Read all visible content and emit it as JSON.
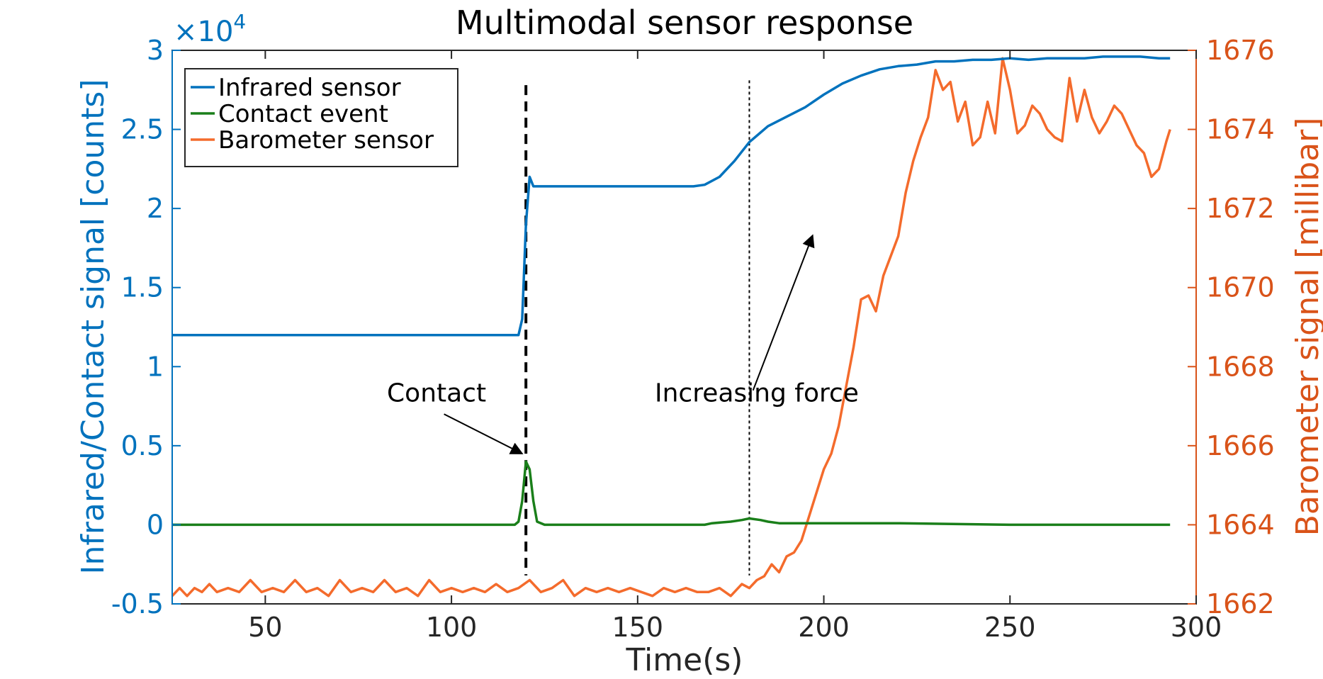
{
  "chart_data": {
    "type": "line",
    "title": "Multimodal sensor response",
    "xlabel": "Time(s)",
    "ylabel_left": "Infrared/Contact signal [counts]",
    "ylabel_right": "Barometer signal [millibar]",
    "left_multiplier": "×10",
    "left_multiplier_exp": "4",
    "xlim": [
      25,
      300
    ],
    "ylim_left": [
      -0.5,
      3
    ],
    "ylim_right": [
      1662,
      1676
    ],
    "x_ticks": [
      50,
      100,
      150,
      200,
      250,
      300
    ],
    "x_tick_labels": [
      "50",
      "100",
      "150",
      "200",
      "250",
      "300"
    ],
    "y_left_ticks": [
      -0.5,
      0,
      0.5,
      1,
      1.5,
      2,
      2.5,
      3
    ],
    "y_left_tick_labels": [
      "-0.5",
      "0",
      "0.5",
      "1",
      "1.5",
      "2",
      "2.5",
      "3"
    ],
    "y_right_ticks": [
      1662,
      1664,
      1666,
      1668,
      1670,
      1672,
      1674,
      1676
    ],
    "y_right_tick_labels": [
      "1662",
      "1664",
      "1666",
      "1668",
      "1670",
      "1672",
      "1674",
      "1676"
    ],
    "grid": false,
    "legend_position": "top-left",
    "colors": {
      "infrared": "#0072BD",
      "contact": "#1A7F1A",
      "barometer": "#F46B2C",
      "left_axis": "#0072BD",
      "right_axis": "#D95319"
    },
    "series": [
      {
        "name": "Infrared sensor",
        "axis": "left",
        "x": [
          25,
          60,
          100,
          118,
          119,
          120,
          121,
          122,
          130,
          150,
          165,
          168,
          172,
          176,
          180,
          182,
          185,
          190,
          195,
          200,
          205,
          210,
          215,
          220,
          225,
          230,
          235,
          240,
          245,
          250,
          255,
          260,
          265,
          270,
          275,
          280,
          285,
          290,
          293
        ],
        "y": [
          1.2,
          1.2,
          1.2,
          1.2,
          1.3,
          1.9,
          2.2,
          2.14,
          2.14,
          2.14,
          2.14,
          2.15,
          2.2,
          2.3,
          2.42,
          2.46,
          2.52,
          2.58,
          2.64,
          2.72,
          2.79,
          2.84,
          2.88,
          2.9,
          2.91,
          2.93,
          2.93,
          2.94,
          2.94,
          2.95,
          2.94,
          2.95,
          2.95,
          2.95,
          2.96,
          2.96,
          2.96,
          2.95,
          2.95
        ]
      },
      {
        "name": "Contact event",
        "axis": "left",
        "x": [
          25,
          60,
          100,
          117,
          118,
          119,
          120,
          121,
          122,
          123,
          125,
          150,
          168,
          170,
          175,
          178,
          180,
          183,
          185,
          188,
          190,
          200,
          220,
          250,
          293
        ],
        "y": [
          0,
          0,
          0,
          0,
          0.02,
          0.15,
          0.4,
          0.35,
          0.15,
          0.02,
          0,
          0,
          0,
          0.01,
          0.02,
          0.03,
          0.04,
          0.03,
          0.02,
          0.01,
          0.01,
          0.01,
          0.01,
          0,
          0
        ]
      },
      {
        "name": "Barometer sensor",
        "axis": "right",
        "x": [
          25,
          27,
          29,
          31,
          33,
          35,
          37,
          40,
          43,
          46,
          49,
          52,
          55,
          58,
          61,
          64,
          67,
          70,
          73,
          76,
          79,
          82,
          85,
          88,
          91,
          94,
          97,
          100,
          103,
          106,
          109,
          112,
          115,
          118,
          121,
          124,
          127,
          130,
          133,
          136,
          139,
          142,
          145,
          148,
          151,
          154,
          157,
          160,
          163,
          166,
          169,
          172,
          175,
          178,
          180,
          182,
          184,
          186,
          188,
          190,
          192,
          194,
          196,
          198,
          200,
          202,
          204,
          206,
          208,
          210,
          212,
          214,
          216,
          218,
          220,
          222,
          224,
          226,
          228,
          230,
          232,
          234,
          236,
          238,
          240,
          242,
          244,
          246,
          248,
          250,
          252,
          254,
          256,
          258,
          260,
          262,
          264,
          266,
          268,
          270,
          272,
          274,
          276,
          278,
          280,
          282,
          284,
          286,
          288,
          290,
          292,
          293
        ],
        "y": [
          1662.2,
          1662.4,
          1662.2,
          1662.4,
          1662.3,
          1662.5,
          1662.3,
          1662.4,
          1662.3,
          1662.6,
          1662.3,
          1662.4,
          1662.3,
          1662.6,
          1662.3,
          1662.4,
          1662.2,
          1662.6,
          1662.3,
          1662.4,
          1662.3,
          1662.6,
          1662.3,
          1662.4,
          1662.2,
          1662.6,
          1662.3,
          1662.4,
          1662.3,
          1662.4,
          1662.3,
          1662.5,
          1662.3,
          1662.4,
          1662.6,
          1662.3,
          1662.4,
          1662.6,
          1662.2,
          1662.4,
          1662.3,
          1662.4,
          1662.3,
          1662.4,
          1662.3,
          1662.2,
          1662.4,
          1662.3,
          1662.4,
          1662.3,
          1662.3,
          1662.4,
          1662.2,
          1662.5,
          1662.4,
          1662.6,
          1662.7,
          1663.0,
          1662.8,
          1663.2,
          1663.3,
          1663.6,
          1664.2,
          1664.8,
          1665.4,
          1665.8,
          1666.5,
          1667.5,
          1668.5,
          1669.7,
          1669.8,
          1669.4,
          1670.3,
          1670.8,
          1671.3,
          1672.4,
          1673.2,
          1673.8,
          1674.3,
          1675.5,
          1675.0,
          1675.2,
          1674.2,
          1674.7,
          1673.6,
          1673.8,
          1674.7,
          1673.9,
          1675.8,
          1675.0,
          1673.9,
          1674.1,
          1674.6,
          1674.4,
          1674.0,
          1673.8,
          1673.7,
          1675.3,
          1674.2,
          1675.0,
          1674.3,
          1673.9,
          1674.2,
          1674.6,
          1674.4,
          1674.0,
          1673.6,
          1673.4,
          1672.8,
          1673.0,
          1673.7,
          1674.0
        ]
      }
    ],
    "vertical_lines": [
      {
        "x": 120,
        "y_top": 2.78,
        "y_bottom": -0.32,
        "style": "dashed-thick"
      },
      {
        "x": 180,
        "y_top": 2.81,
        "y_bottom": -0.32,
        "style": "dotted-thin"
      }
    ],
    "annotations": [
      {
        "text": "Contact",
        "x": 96,
        "y": 0.78,
        "arrow_from": [
          98,
          0.7
        ],
        "arrow_to": [
          119,
          0.45
        ]
      },
      {
        "text": "Increasing force",
        "x": 182,
        "y": 0.78,
        "arrow_from": [
          181,
          0.85
        ],
        "arrow_to": [
          197,
          1.83
        ]
      }
    ]
  }
}
